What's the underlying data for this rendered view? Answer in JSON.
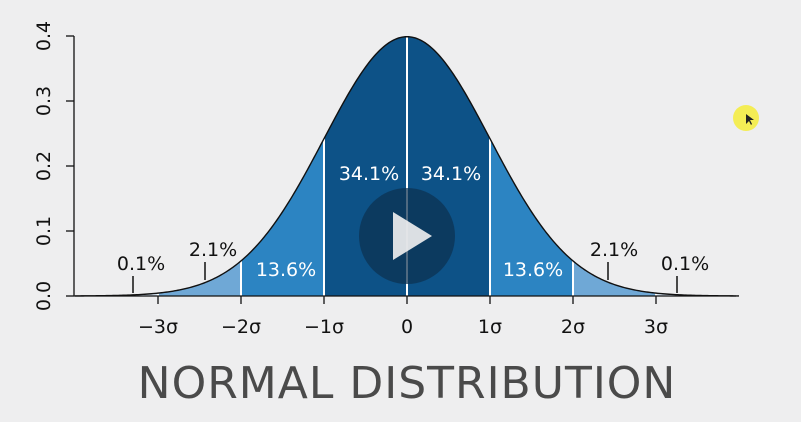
{
  "chart_data": {
    "type": "area",
    "title": "NORMAL DISTRIBUTION",
    "xlim": [
      -4,
      4
    ],
    "ylim": [
      0,
      0.4
    ],
    "x_ticks": [
      {
        "value": -3,
        "label": "−3σ"
      },
      {
        "value": -2,
        "label": "−2σ"
      },
      {
        "value": -1,
        "label": "−1σ"
      },
      {
        "value": 0,
        "label": "0"
      },
      {
        "value": 1,
        "label": "1σ"
      },
      {
        "value": 2,
        "label": "2σ"
      },
      {
        "value": 3,
        "label": "3σ"
      }
    ],
    "y_ticks": [
      {
        "value": 0,
        "label": "0.0"
      },
      {
        "value": 0.1,
        "label": "0.1"
      },
      {
        "value": 0.2,
        "label": "0.2"
      },
      {
        "value": 0.3,
        "label": "0.3"
      },
      {
        "value": 0.4,
        "label": "0.4"
      }
    ],
    "regions": [
      {
        "from": -4,
        "to": -3,
        "label": "0.1%",
        "color": "#d7e6f3"
      },
      {
        "from": -3,
        "to": -2,
        "label": "2.1%",
        "color": "#6fa8d6"
      },
      {
        "from": -2,
        "to": -1,
        "label": "13.6%",
        "color": "#2c84c2"
      },
      {
        "from": -1,
        "to": 0,
        "label": "34.1%",
        "color": "#0d5287"
      },
      {
        "from": 0,
        "to": 1,
        "label": "34.1%",
        "color": "#0d5287"
      },
      {
        "from": 1,
        "to": 2,
        "label": "13.6%",
        "color": "#2c84c2"
      },
      {
        "from": 2,
        "to": 3,
        "label": "2.1%",
        "color": "#6fa8d6"
      },
      {
        "from": 3,
        "to": 4,
        "label": "0.1%",
        "color": "#d7e6f3"
      }
    ],
    "grid": false
  },
  "player": {
    "play_icon": "play-icon",
    "overlay_color": "#0d3050"
  },
  "cursor": {
    "highlight_color": "#f5ec3a"
  }
}
